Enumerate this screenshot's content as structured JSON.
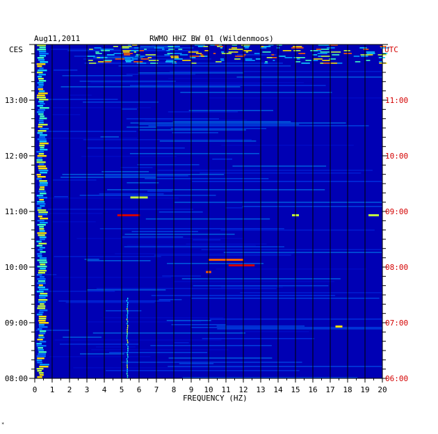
{
  "header": {
    "date": "Aug11,2011",
    "station": "RWMO HHZ BW 01 (Wildenmoos)"
  },
  "left_axis": {
    "label": "CES"
  },
  "right_axis": {
    "label": "UTC"
  },
  "footer_mark": "*",
  "colors": {
    "background": "#0000b4",
    "left_label": "#000000",
    "right_label": "#d40000",
    "gridline": "#000000"
  },
  "chart_data": {
    "type": "heatmap",
    "title": "RWMO HHZ BW 01 (Wildenmoos)",
    "xlabel": "FREQUENCY (HZ)",
    "xlim": [
      0,
      20
    ],
    "x_ticks": [
      "0",
      "1",
      "2",
      "3",
      "4",
      "5",
      "6",
      "7",
      "8",
      "9",
      "10",
      "11",
      "12",
      "13",
      "14",
      "15",
      "16",
      "17",
      "18",
      "19",
      "20"
    ],
    "y_ticks_local": [
      "13:00",
      "12:00",
      "11:00",
      "10:00",
      "09:00",
      "08:00"
    ],
    "y_ticks_utc": [
      "11:00",
      "10:00",
      "09:00",
      "08:00",
      "07:00",
      "06:00"
    ],
    "y_range_local_hours": [
      8.0,
      14.0
    ],
    "grid": "vertical lines at each integer frequency",
    "colormap": "jet (blue = low amplitude, red = high amplitude)"
  }
}
